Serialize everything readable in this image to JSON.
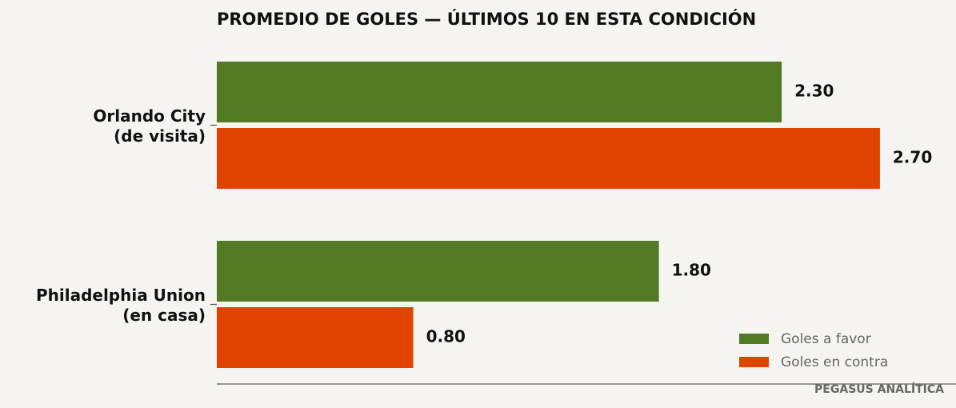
{
  "chart_data": {
    "type": "bar",
    "orientation": "horizontal",
    "title": "PROMEDIO DE GOLES — ÚLTIMOS 10 EN ESTA CONDICIÓN",
    "categories": [
      "Orlando City\n(de visita)",
      "Philadelphia Union\n(en casa)"
    ],
    "series": [
      {
        "name": "Goles a favor",
        "color": "#527a22",
        "values": [
          2.3,
          1.8
        ],
        "value_labels": [
          "2.30",
          "1.80"
        ]
      },
      {
        "name": "Goles en contra",
        "color": "#e04400",
        "values": [
          2.7,
          0.8
        ],
        "value_labels": [
          "2.70",
          "0.80"
        ]
      }
    ],
    "xlim": [
      0,
      3.0
    ],
    "legend": "lower right",
    "footer": "PEGASUS ANALÍTICA"
  }
}
